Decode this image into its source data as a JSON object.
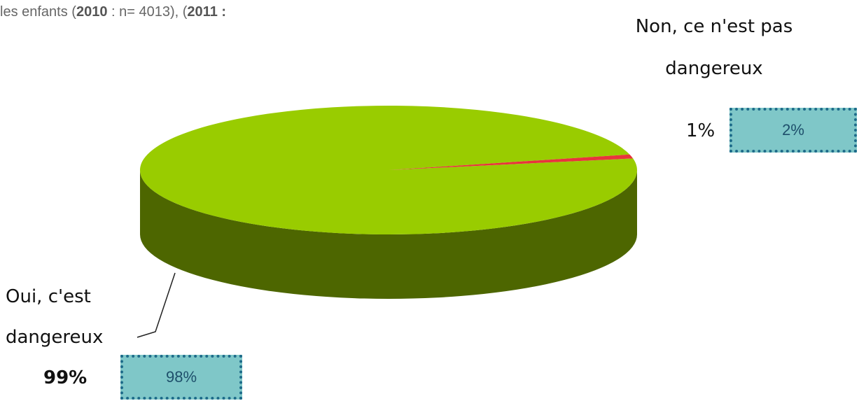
{
  "chart_data": {
    "type": "pie",
    "subtitle_parts": [
      "les enfants (",
      "2010",
      " : n= 4013), (",
      "2011 :"
    ],
    "categories": [
      "Oui, c'est dangereux",
      "Non, ce n'est pas dangereux"
    ],
    "colors": [
      "#99cc00",
      "#e8343c"
    ],
    "side_colors": [
      "#4d6600",
      "#7a1c1c"
    ],
    "series": [
      {
        "values": [
          99,
          1
        ],
        "value_labels": [
          "99%",
          "1%"
        ]
      },
      {
        "values": [
          98,
          2
        ],
        "value_labels": [
          "98%",
          "2%"
        ]
      }
    ]
  }
}
